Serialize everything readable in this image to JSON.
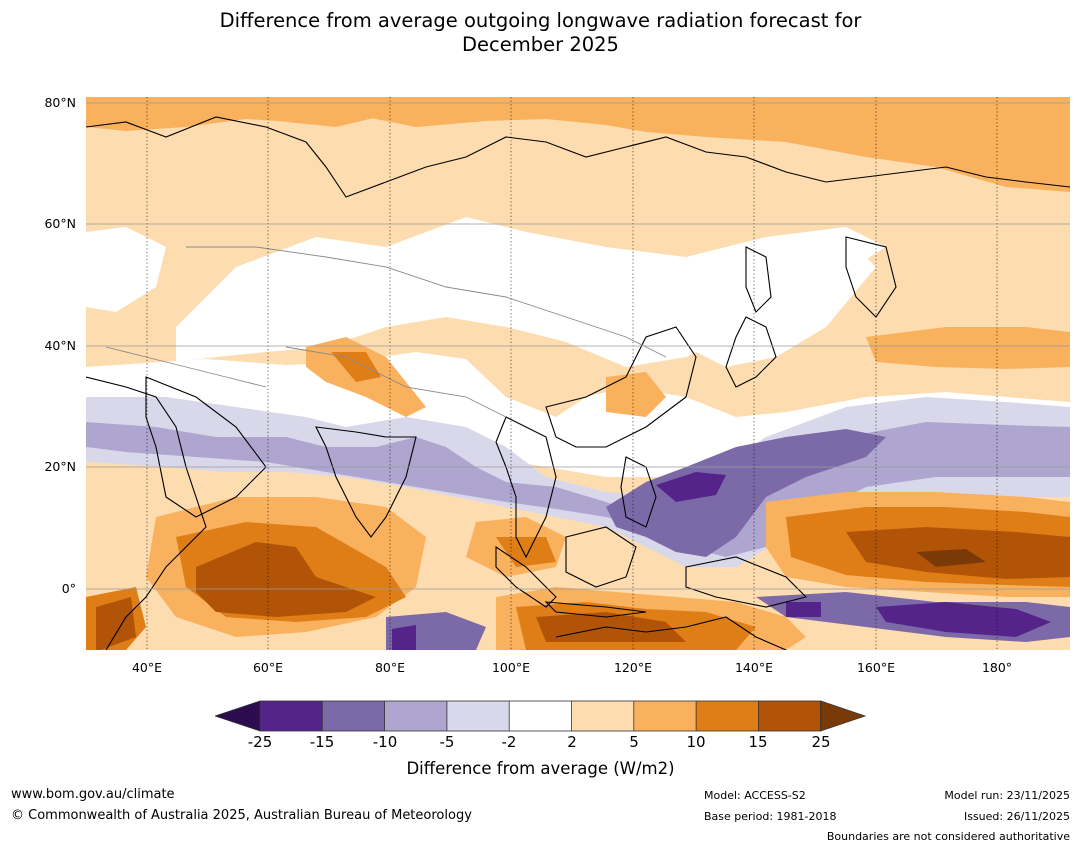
{
  "title_line1": "Difference from average outgoing longwave radiation forecast for",
  "title_line2": "December 2025",
  "map": {
    "projection": "equirectangular",
    "lon_range": [
      30,
      192
    ],
    "lat_range": [
      -10,
      81
    ],
    "lat_ticks": [
      "80°N",
      "60°N",
      "40°N",
      "20°N",
      "0°"
    ],
    "lon_ticks": [
      "40°E",
      "60°E",
      "80°E",
      "100°E",
      "120°E",
      "140°E",
      "160°E",
      "180°"
    ]
  },
  "colorbar": {
    "ticks": [
      "-25",
      "-15",
      "-10",
      "-5",
      "-2",
      "2",
      "5",
      "10",
      "15",
      "25"
    ],
    "colors": {
      "below": "#2d0b4f",
      "c1": "#55248b",
      "c2": "#7c6aa8",
      "c3": "#aea6cf",
      "c4": "#d9d8ea",
      "c5": "#ffffff",
      "c6": "#fddcb0",
      "c7": "#f9b15e",
      "c8": "#df7e17",
      "c9": "#b25407",
      "above": "#7a3a07"
    },
    "label": "Difference from average (W/m2)"
  },
  "footer": {
    "website": "www.bom.gov.au/climate",
    "copyright": "© Commonwealth of Australia 2025, Australian Bureau of Meteorology",
    "model": "Model: ACCESS-S2",
    "base_period": "Base period: 1981-2018",
    "model_run": "Model run: 23/11/2025",
    "issued": "Issued: 26/11/2025",
    "disclaimer": "Boundaries are not considered authoritative"
  }
}
